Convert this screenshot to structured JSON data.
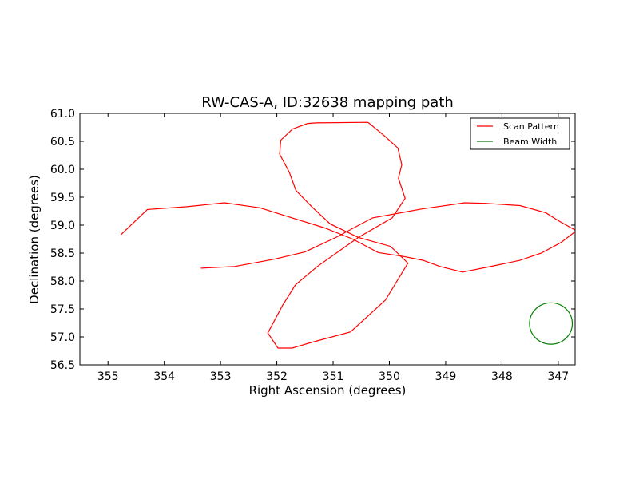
{
  "chart_data": {
    "type": "line",
    "title": "RW-CAS-A, ID:32638 mapping path",
    "xlabel": "Right Ascension (degrees)",
    "ylabel": "Declination (degrees)",
    "xlim": [
      355.5,
      346.7
    ],
    "ylim": [
      56.5,
      61.0
    ],
    "xticks": [
      355,
      354,
      353,
      352,
      351,
      350,
      349,
      348,
      347
    ],
    "xtick_labels": [
      "355",
      "354",
      "353",
      "352",
      "351",
      "350",
      "349",
      "348",
      "347"
    ],
    "yticks": [
      56.5,
      57.0,
      57.5,
      58.0,
      58.5,
      59.0,
      59.5,
      60.0,
      60.5,
      61.0
    ],
    "ytick_labels": [
      "56.5",
      "57.0",
      "57.5",
      "58.0",
      "58.5",
      "59.0",
      "59.5",
      "60.0",
      "60.5",
      "61.0"
    ],
    "grid": false,
    "legend_position": "top-right",
    "series": [
      {
        "name": "Scan Pattern",
        "color": "#ff0000",
        "x": [
          354.77,
          354.3,
          353.6,
          352.93,
          352.3,
          351.7,
          351.15,
          350.65,
          350.2,
          349.75,
          349.4,
          349.1,
          348.7,
          348.25,
          347.68,
          347.3,
          346.95,
          346.68,
          347.0,
          347.22,
          347.68,
          348.3,
          348.66,
          349.42,
          350.3,
          350.95,
          351.5,
          352.05,
          352.75,
          353.35
        ],
        "y": [
          58.83,
          59.28,
          59.33,
          59.4,
          59.31,
          59.12,
          58.95,
          58.75,
          58.51,
          58.44,
          58.37,
          58.26,
          58.16,
          58.25,
          58.37,
          58.5,
          58.69,
          58.9,
          59.08,
          59.22,
          59.35,
          59.39,
          59.4,
          59.29,
          59.13,
          58.78,
          58.52,
          58.39,
          58.26,
          58.23
        ]
      },
      {
        "name": "Scan Pattern",
        "color": "#ff0000",
        "x": [
          350.38,
          351.3,
          351.45,
          351.72,
          351.93,
          351.95,
          351.78,
          351.66,
          351.38,
          351.05,
          350.55,
          349.98,
          349.67,
          350.07,
          350.69,
          351.39,
          351.73,
          351.98,
          352.16,
          351.9,
          351.67,
          351.28,
          350.55,
          349.95,
          349.72,
          349.84,
          349.78,
          349.85,
          350.08,
          350.38
        ],
        "y": [
          60.84,
          60.83,
          60.82,
          60.72,
          60.52,
          60.27,
          59.95,
          59.62,
          59.33,
          59.02,
          58.78,
          58.62,
          58.32,
          57.66,
          57.09,
          56.9,
          56.8,
          56.8,
          57.07,
          57.56,
          57.93,
          58.26,
          58.78,
          59.13,
          59.48,
          59.84,
          60.08,
          60.38,
          60.59,
          60.84
        ]
      }
    ],
    "beam": {
      "name": "Beam Width",
      "color": "#008000",
      "center_x": 347.13,
      "center_y": 57.24,
      "radius_x_deg": 0.38,
      "radius_y_deg": 0.37
    },
    "legend": [
      {
        "label": "Scan Pattern",
        "color": "#ff0000"
      },
      {
        "label": "Beam Width",
        "color": "#008000"
      }
    ]
  }
}
